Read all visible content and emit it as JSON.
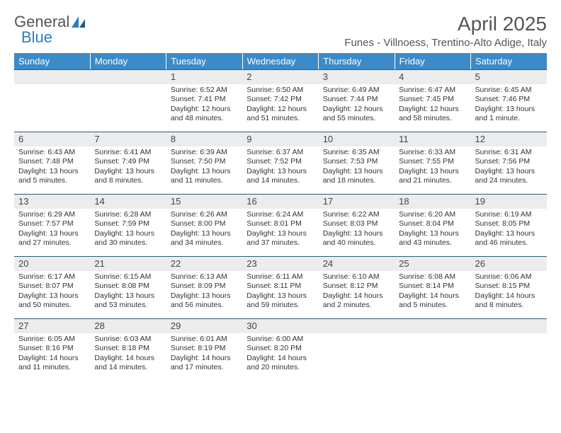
{
  "logo": {
    "text1": "General",
    "text2": "Blue"
  },
  "title": "April 2025",
  "location": "Funes - Villnoess, Trentino-Alto Adige, Italy",
  "colors": {
    "header_bg": "#3b8bc8",
    "header_text": "#ffffff",
    "daynum_bg": "#ececec",
    "border_top": "#2b5c7a",
    "text": "#333333",
    "title_text": "#555555",
    "logo_gray": "#555555",
    "logo_blue": "#2e7cc0",
    "page_bg": "#ffffff"
  },
  "day_headers": [
    "Sunday",
    "Monday",
    "Tuesday",
    "Wednesday",
    "Thursday",
    "Friday",
    "Saturday"
  ],
  "weeks": [
    [
      {
        "day": "",
        "sunrise": "",
        "sunset": "",
        "daylight": ""
      },
      {
        "day": "",
        "sunrise": "",
        "sunset": "",
        "daylight": ""
      },
      {
        "day": "1",
        "sunrise": "Sunrise: 6:52 AM",
        "sunset": "Sunset: 7:41 PM",
        "daylight": "Daylight: 12 hours and 48 minutes."
      },
      {
        "day": "2",
        "sunrise": "Sunrise: 6:50 AM",
        "sunset": "Sunset: 7:42 PM",
        "daylight": "Daylight: 12 hours and 51 minutes."
      },
      {
        "day": "3",
        "sunrise": "Sunrise: 6:49 AM",
        "sunset": "Sunset: 7:44 PM",
        "daylight": "Daylight: 12 hours and 55 minutes."
      },
      {
        "day": "4",
        "sunrise": "Sunrise: 6:47 AM",
        "sunset": "Sunset: 7:45 PM",
        "daylight": "Daylight: 12 hours and 58 minutes."
      },
      {
        "day": "5",
        "sunrise": "Sunrise: 6:45 AM",
        "sunset": "Sunset: 7:46 PM",
        "daylight": "Daylight: 13 hours and 1 minute."
      }
    ],
    [
      {
        "day": "6",
        "sunrise": "Sunrise: 6:43 AM",
        "sunset": "Sunset: 7:48 PM",
        "daylight": "Daylight: 13 hours and 5 minutes."
      },
      {
        "day": "7",
        "sunrise": "Sunrise: 6:41 AM",
        "sunset": "Sunset: 7:49 PM",
        "daylight": "Daylight: 13 hours and 8 minutes."
      },
      {
        "day": "8",
        "sunrise": "Sunrise: 6:39 AM",
        "sunset": "Sunset: 7:50 PM",
        "daylight": "Daylight: 13 hours and 11 minutes."
      },
      {
        "day": "9",
        "sunrise": "Sunrise: 6:37 AM",
        "sunset": "Sunset: 7:52 PM",
        "daylight": "Daylight: 13 hours and 14 minutes."
      },
      {
        "day": "10",
        "sunrise": "Sunrise: 6:35 AM",
        "sunset": "Sunset: 7:53 PM",
        "daylight": "Daylight: 13 hours and 18 minutes."
      },
      {
        "day": "11",
        "sunrise": "Sunrise: 6:33 AM",
        "sunset": "Sunset: 7:55 PM",
        "daylight": "Daylight: 13 hours and 21 minutes."
      },
      {
        "day": "12",
        "sunrise": "Sunrise: 6:31 AM",
        "sunset": "Sunset: 7:56 PM",
        "daylight": "Daylight: 13 hours and 24 minutes."
      }
    ],
    [
      {
        "day": "13",
        "sunrise": "Sunrise: 6:29 AM",
        "sunset": "Sunset: 7:57 PM",
        "daylight": "Daylight: 13 hours and 27 minutes."
      },
      {
        "day": "14",
        "sunrise": "Sunrise: 6:28 AM",
        "sunset": "Sunset: 7:59 PM",
        "daylight": "Daylight: 13 hours and 30 minutes."
      },
      {
        "day": "15",
        "sunrise": "Sunrise: 6:26 AM",
        "sunset": "Sunset: 8:00 PM",
        "daylight": "Daylight: 13 hours and 34 minutes."
      },
      {
        "day": "16",
        "sunrise": "Sunrise: 6:24 AM",
        "sunset": "Sunset: 8:01 PM",
        "daylight": "Daylight: 13 hours and 37 minutes."
      },
      {
        "day": "17",
        "sunrise": "Sunrise: 6:22 AM",
        "sunset": "Sunset: 8:03 PM",
        "daylight": "Daylight: 13 hours and 40 minutes."
      },
      {
        "day": "18",
        "sunrise": "Sunrise: 6:20 AM",
        "sunset": "Sunset: 8:04 PM",
        "daylight": "Daylight: 13 hours and 43 minutes."
      },
      {
        "day": "19",
        "sunrise": "Sunrise: 6:19 AM",
        "sunset": "Sunset: 8:05 PM",
        "daylight": "Daylight: 13 hours and 46 minutes."
      }
    ],
    [
      {
        "day": "20",
        "sunrise": "Sunrise: 6:17 AM",
        "sunset": "Sunset: 8:07 PM",
        "daylight": "Daylight: 13 hours and 50 minutes."
      },
      {
        "day": "21",
        "sunrise": "Sunrise: 6:15 AM",
        "sunset": "Sunset: 8:08 PM",
        "daylight": "Daylight: 13 hours and 53 minutes."
      },
      {
        "day": "22",
        "sunrise": "Sunrise: 6:13 AM",
        "sunset": "Sunset: 8:09 PM",
        "daylight": "Daylight: 13 hours and 56 minutes."
      },
      {
        "day": "23",
        "sunrise": "Sunrise: 6:11 AM",
        "sunset": "Sunset: 8:11 PM",
        "daylight": "Daylight: 13 hours and 59 minutes."
      },
      {
        "day": "24",
        "sunrise": "Sunrise: 6:10 AM",
        "sunset": "Sunset: 8:12 PM",
        "daylight": "Daylight: 14 hours and 2 minutes."
      },
      {
        "day": "25",
        "sunrise": "Sunrise: 6:08 AM",
        "sunset": "Sunset: 8:14 PM",
        "daylight": "Daylight: 14 hours and 5 minutes."
      },
      {
        "day": "26",
        "sunrise": "Sunrise: 6:06 AM",
        "sunset": "Sunset: 8:15 PM",
        "daylight": "Daylight: 14 hours and 8 minutes."
      }
    ],
    [
      {
        "day": "27",
        "sunrise": "Sunrise: 6:05 AM",
        "sunset": "Sunset: 8:16 PM",
        "daylight": "Daylight: 14 hours and 11 minutes."
      },
      {
        "day": "28",
        "sunrise": "Sunrise: 6:03 AM",
        "sunset": "Sunset: 8:18 PM",
        "daylight": "Daylight: 14 hours and 14 minutes."
      },
      {
        "day": "29",
        "sunrise": "Sunrise: 6:01 AM",
        "sunset": "Sunset: 8:19 PM",
        "daylight": "Daylight: 14 hours and 17 minutes."
      },
      {
        "day": "30",
        "sunrise": "Sunrise: 6:00 AM",
        "sunset": "Sunset: 8:20 PM",
        "daylight": "Daylight: 14 hours and 20 minutes."
      },
      {
        "day": "",
        "sunrise": "",
        "sunset": "",
        "daylight": ""
      },
      {
        "day": "",
        "sunrise": "",
        "sunset": "",
        "daylight": ""
      },
      {
        "day": "",
        "sunrise": "",
        "sunset": "",
        "daylight": ""
      }
    ]
  ]
}
